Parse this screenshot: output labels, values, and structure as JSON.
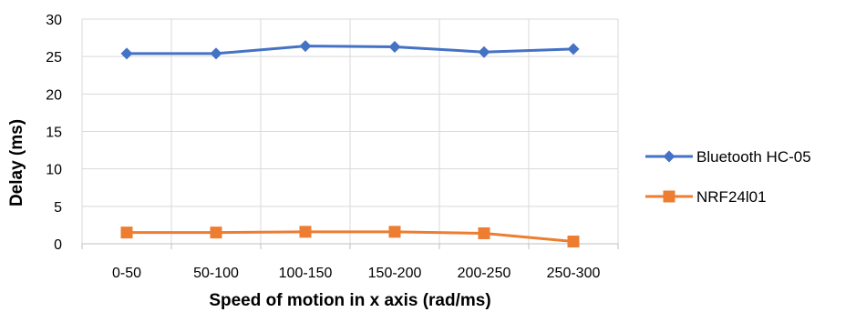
{
  "chart_data": {
    "type": "line",
    "title": "",
    "xlabel": "Speed of motion  in x axis (rad/ms)",
    "ylabel": "Delay (ms)",
    "categories": [
      "0-50",
      "50-100",
      "100-150",
      "150-200",
      "200-250",
      "250-300"
    ],
    "ylim": [
      0,
      30
    ],
    "yticks": [
      0,
      5,
      10,
      15,
      20,
      25,
      30
    ],
    "grid": true,
    "legend_position": "right",
    "series": [
      {
        "name": "Bluetooth HC-05",
        "values": [
          25.4,
          25.4,
          26.4,
          26.3,
          25.6,
          26.0
        ],
        "color": "#4472C4",
        "marker": "diamond"
      },
      {
        "name": "NRF24l01",
        "values": [
          1.5,
          1.5,
          1.6,
          1.6,
          1.4,
          0.3
        ],
        "color": "#ED7D31",
        "marker": "square"
      }
    ]
  }
}
